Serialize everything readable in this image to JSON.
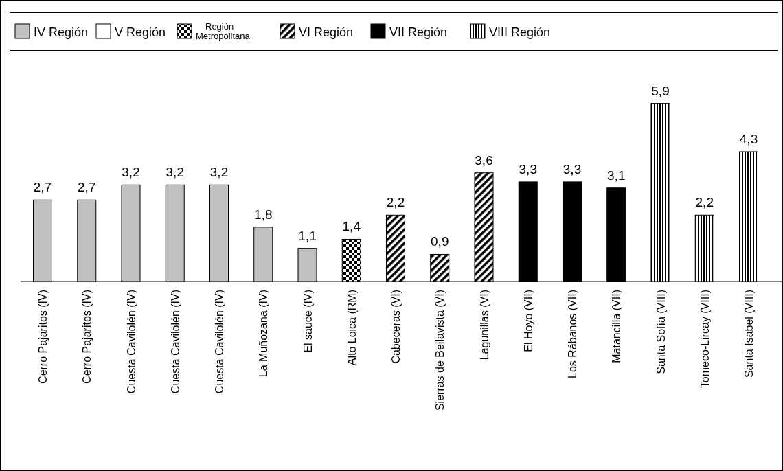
{
  "chart_data": {
    "type": "bar",
    "stacked": true,
    "legend": "top",
    "categories": [
      "Cerro Pajaritos (IV)",
      "Cerro Pajaritos (IV)",
      "Cuesta Cavilolén (IV)",
      "Cuesta Cavilolén (IV)",
      "Cuesta Cavilolén (IV)",
      "La Muñozana (IV)",
      "El sauce (IV)",
      "Alto Loica (RM)",
      "Cabeceras (VI)",
      "Sierras de Bellavista (VI)",
      "Lagunillas (VI)",
      "El Hoyo (VII)",
      "Los Rábanos (VII)",
      "Matancilla (VII)",
      "Santa Sofía (VIII)",
      "Tomeco-Lircay (VIII)",
      "Santa Isabel (VIII)"
    ],
    "series": [
      {
        "name": "IV Región",
        "color": "#c0c0c0",
        "values": [
          2.7,
          2.7,
          3.2,
          3.2,
          3.2,
          1.8,
          1.1,
          null,
          null,
          null,
          null,
          null,
          null,
          null,
          null,
          null,
          null
        ],
        "value_labels": [
          "2,7",
          "2,7",
          "3,2",
          "3,2",
          "3,2",
          "1,8",
          "1,1",
          null,
          null,
          null,
          null,
          null,
          null,
          null,
          null,
          null,
          null
        ]
      },
      {
        "name": "V Región",
        "color": "#ffffff",
        "values": [
          null,
          null,
          null,
          null,
          null,
          null,
          null,
          null,
          null,
          null,
          null,
          null,
          null,
          null,
          null,
          null,
          null
        ]
      },
      {
        "name": "Región Metropolitana",
        "color": "#000000",
        "values": [
          null,
          null,
          null,
          null,
          null,
          null,
          null,
          1.4,
          null,
          null,
          null,
          null,
          null,
          null,
          null,
          null,
          null
        ],
        "value_labels": [
          null,
          null,
          null,
          null,
          null,
          null,
          null,
          "1,4",
          null,
          null,
          null,
          null,
          null,
          null,
          null,
          null,
          null
        ]
      },
      {
        "name": "VI Región",
        "color": "#000000",
        "values": [
          null,
          null,
          null,
          null,
          null,
          null,
          null,
          null,
          2.2,
          0.9,
          3.6,
          null,
          null,
          null,
          null,
          null,
          null
        ],
        "value_labels": [
          null,
          null,
          null,
          null,
          null,
          null,
          null,
          null,
          "2,2",
          "0,9",
          "3,6",
          null,
          null,
          null,
          null,
          null,
          null
        ]
      },
      {
        "name": "VII Región",
        "color": "#000000",
        "values": [
          null,
          null,
          null,
          null,
          null,
          null,
          null,
          null,
          null,
          null,
          null,
          3.3,
          3.3,
          3.1,
          null,
          null,
          null
        ],
        "value_labels": [
          null,
          null,
          null,
          null,
          null,
          null,
          null,
          null,
          null,
          null,
          null,
          "3,3",
          "3,3",
          "3,1",
          null,
          null,
          null
        ]
      },
      {
        "name": "VIII Región",
        "color": "#000000",
        "values": [
          null,
          null,
          null,
          null,
          null,
          null,
          null,
          null,
          null,
          null,
          null,
          null,
          null,
          null,
          5.9,
          2.2,
          4.3
        ],
        "value_labels": [
          null,
          null,
          null,
          null,
          null,
          null,
          null,
          null,
          null,
          null,
          null,
          null,
          null,
          null,
          "5,9",
          "2,2",
          "4,3"
        ]
      }
    ]
  }
}
